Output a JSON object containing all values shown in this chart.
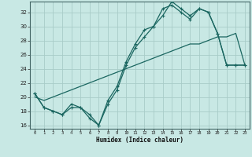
{
  "title": "",
  "xlabel": "Humidex (Indice chaleur)",
  "xlim": [
    -0.5,
    23.5
  ],
  "ylim": [
    15.5,
    33.5
  ],
  "xticks": [
    0,
    1,
    2,
    3,
    4,
    5,
    6,
    7,
    8,
    9,
    10,
    11,
    12,
    13,
    14,
    15,
    16,
    17,
    18,
    19,
    20,
    21,
    22,
    23
  ],
  "yticks": [
    16,
    18,
    20,
    22,
    24,
    26,
    28,
    30,
    32
  ],
  "bg_color": "#c8e8e4",
  "grid_color": "#a8ccc8",
  "line_color": "#1a6660",
  "line1_x": [
    0,
    1,
    2,
    3,
    4,
    5,
    6,
    7,
    8,
    9,
    10,
    11,
    12,
    13,
    14,
    15,
    16,
    17,
    18,
    19,
    20,
    21,
    22,
    23
  ],
  "line1_y": [
    20.5,
    18.5,
    18.0,
    17.5,
    18.5,
    18.5,
    17.5,
    16.0,
    19.0,
    21.0,
    24.5,
    27.0,
    28.5,
    30.0,
    32.5,
    33.0,
    32.0,
    31.0,
    32.5,
    32.0,
    29.0,
    24.5,
    24.5,
    24.5
  ],
  "line2_x": [
    0,
    1,
    2,
    3,
    4,
    5,
    6,
    7,
    8,
    9,
    10,
    11,
    12,
    13,
    14,
    15,
    16,
    17,
    18,
    19,
    20,
    21,
    22,
    23
  ],
  "line2_y": [
    20.5,
    18.5,
    18.0,
    17.5,
    19.0,
    18.5,
    17.0,
    16.0,
    19.5,
    21.5,
    25.0,
    27.5,
    29.5,
    30.0,
    31.5,
    33.5,
    32.5,
    31.5,
    32.5,
    32.0,
    29.0,
    24.5,
    24.5,
    24.5
  ],
  "line3_x": [
    0,
    1,
    2,
    3,
    4,
    5,
    6,
    7,
    8,
    9,
    10,
    11,
    12,
    13,
    14,
    15,
    16,
    17,
    18,
    19,
    20,
    21,
    22,
    23
  ],
  "line3_y": [
    20.0,
    19.5,
    20.0,
    20.5,
    21.0,
    21.5,
    22.0,
    22.5,
    23.0,
    23.5,
    24.0,
    24.5,
    25.0,
    25.5,
    26.0,
    26.5,
    27.0,
    27.5,
    27.5,
    28.0,
    28.5,
    28.5,
    29.0,
    24.5
  ]
}
